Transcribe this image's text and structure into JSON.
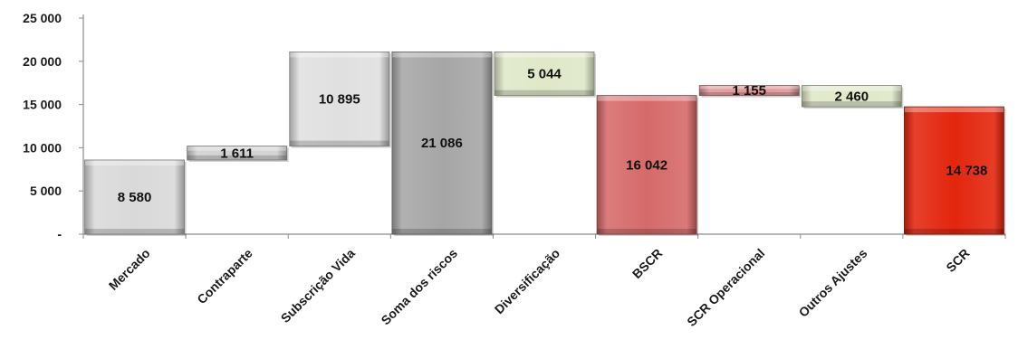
{
  "chart_data": {
    "type": "waterfall",
    "title": "",
    "xlabel": "",
    "ylabel": "",
    "ylim": [
      0,
      25000
    ],
    "y_ticks": [
      {
        "value": 0,
        "label": "-"
      },
      {
        "value": 5000,
        "label": "5 000"
      },
      {
        "value": 10000,
        "label": "10 000"
      },
      {
        "value": 15000,
        "label": "15 000"
      },
      {
        "value": 20000,
        "label": "20 000"
      },
      {
        "value": 25000,
        "label": "25 000"
      }
    ],
    "grid": false,
    "legend": "none",
    "categories": [
      "Mercado",
      "Contraparte",
      "Subscrição Vida",
      "Soma dos riscos",
      "Diversificação",
      "BSCR",
      "SCR Operacional",
      "Outros Ajustes",
      "SCR"
    ],
    "values": [
      8580,
      1611,
      10895,
      21086,
      -5044,
      16042,
      1155,
      -2460,
      14738
    ],
    "value_labels": [
      "8 580",
      "1 611",
      "10 895",
      "21 086",
      "5 044",
      "16 042",
      "1 155",
      "2 460",
      "14 738"
    ],
    "bars": [
      {
        "base": 0,
        "top": 8580,
        "color": "#d9d9d9"
      },
      {
        "base": 8580,
        "top": 10191,
        "color": "#d0d0d0"
      },
      {
        "base": 10191,
        "top": 21086,
        "color": "#e0e0e0"
      },
      {
        "base": 0,
        "top": 21086,
        "color": "#a6a6a6"
      },
      {
        "base": 16042,
        "top": 21086,
        "color": "#dfe8c8"
      },
      {
        "base": 0,
        "top": 16042,
        "color": "#d66a6a"
      },
      {
        "base": 16042,
        "top": 17197,
        "color": "#e09898"
      },
      {
        "base": 14738,
        "top": 17197,
        "color": "#dfe8c8"
      },
      {
        "base": 0,
        "top": 14738,
        "color": "#e3260e"
      }
    ]
  }
}
